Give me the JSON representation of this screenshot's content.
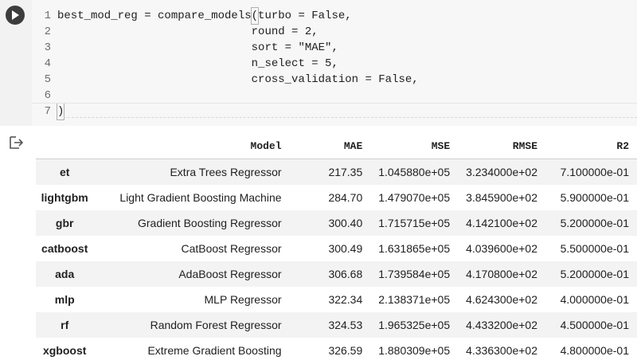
{
  "code": {
    "lines": [
      {
        "num": "1",
        "text": "best_mod_reg = compare_models(turbo = False,"
      },
      {
        "num": "2",
        "text": "                             round = 2,"
      },
      {
        "num": "3",
        "text": "                             sort = \"MAE\","
      },
      {
        "num": "4",
        "text": "                             n_select = 5,"
      },
      {
        "num": "5",
        "text": "                             cross_validation = False,"
      },
      {
        "num": "6",
        "text": ""
      },
      {
        "num": "7",
        "text": ")"
      }
    ]
  },
  "icons": {
    "run": "play-icon",
    "output": "output-icon"
  },
  "table": {
    "headers": [
      "",
      "Model",
      "MAE",
      "MSE",
      "RMSE",
      "R2"
    ],
    "rows": [
      [
        "et",
        "Extra Trees Regressor",
        "217.35",
        "1.045880e+05",
        "3.234000e+02",
        "7.100000e-01"
      ],
      [
        "lightgbm",
        "Light Gradient Boosting Machine",
        "284.70",
        "1.479070e+05",
        "3.845900e+02",
        "5.900000e-01"
      ],
      [
        "gbr",
        "Gradient Boosting Regressor",
        "300.40",
        "1.715715e+05",
        "4.142100e+02",
        "5.200000e-01"
      ],
      [
        "catboost",
        "CatBoost Regressor",
        "300.49",
        "1.631865e+05",
        "4.039600e+02",
        "5.500000e-01"
      ],
      [
        "ada",
        "AdaBoost Regressor",
        "306.68",
        "1.739584e+05",
        "4.170800e+02",
        "5.200000e-01"
      ],
      [
        "mlp",
        "MLP Regressor",
        "322.34",
        "2.138371e+05",
        "4.624300e+02",
        "4.000000e-01"
      ],
      [
        "rf",
        "Random Forest Regressor",
        "324.53",
        "1.965325e+05",
        "4.433200e+02",
        "4.500000e-01"
      ],
      [
        "xgboost",
        "Extreme Gradient Boosting",
        "326.59",
        "1.880309e+05",
        "4.336300e+02",
        "4.800000e-01"
      ]
    ]
  },
  "colors": {
    "gutter": "#f2f2f2",
    "code_bg": "#f7f7f7",
    "run_button": "#3c3c3c",
    "row_stripe": "#f3f3f3"
  }
}
